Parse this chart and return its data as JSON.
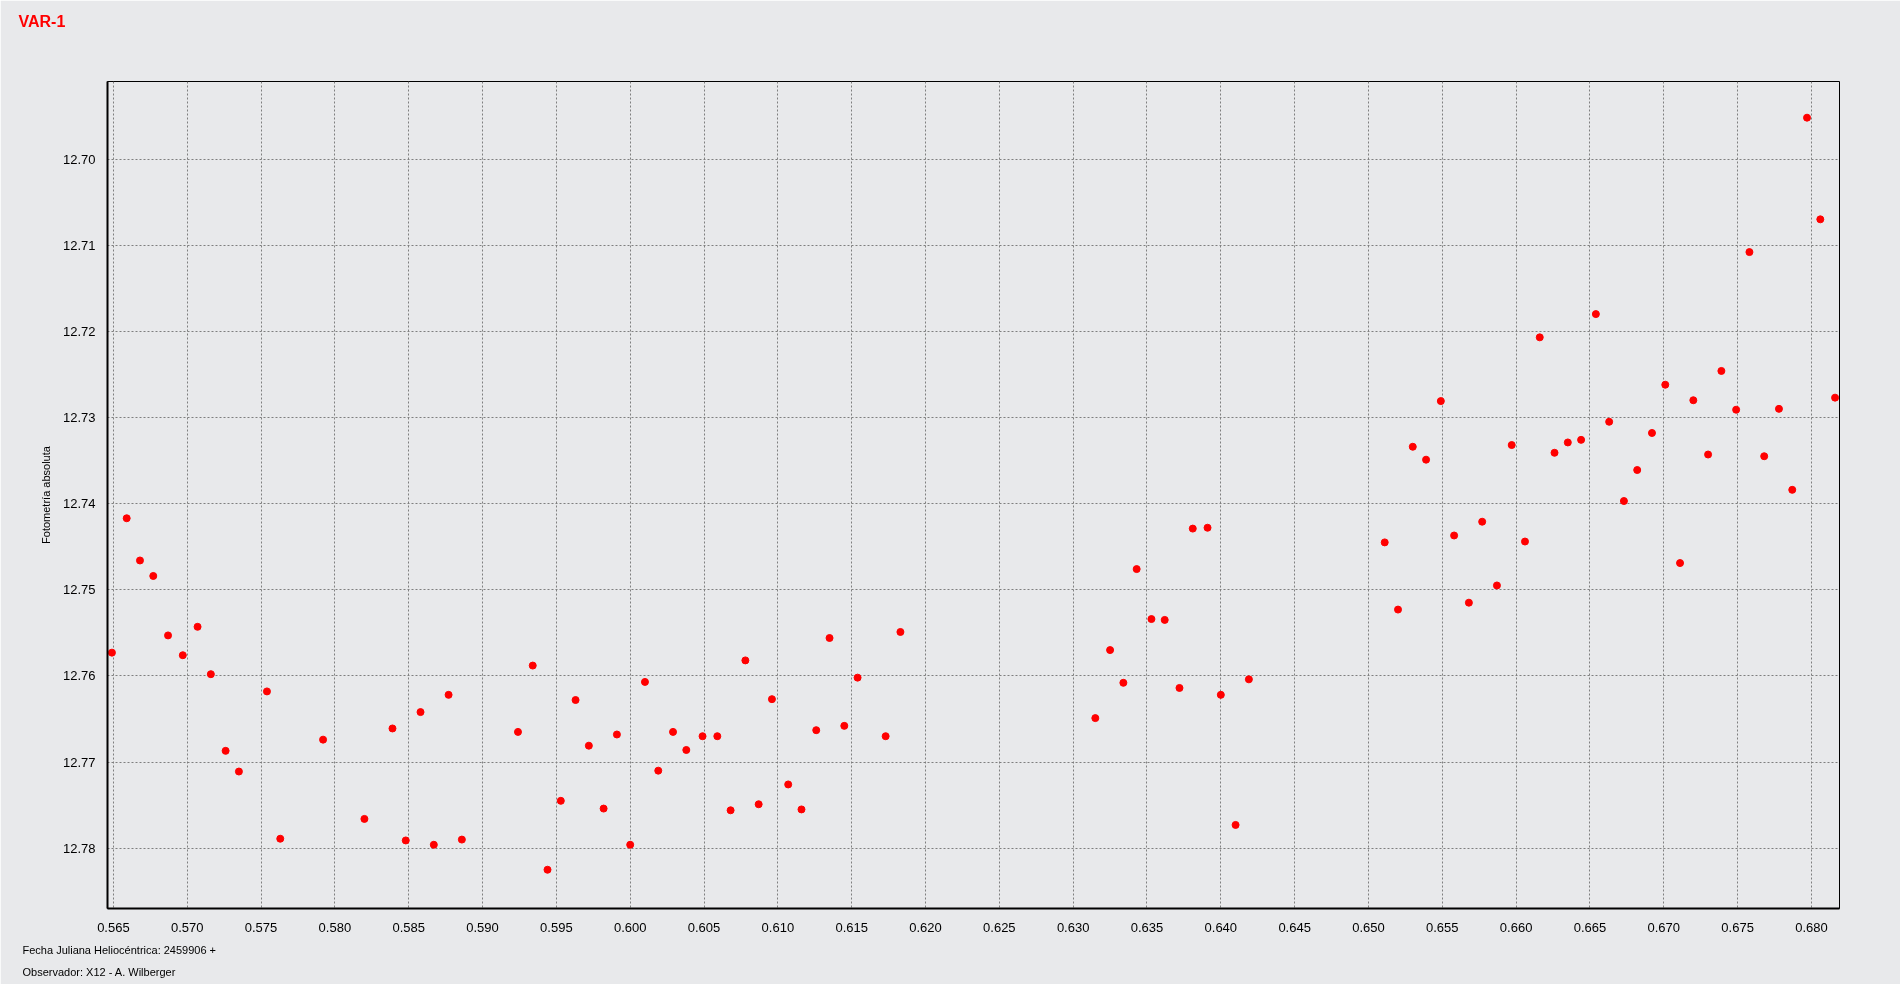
{
  "chart_data": {
    "type": "scatter",
    "title": "VAR-1",
    "xlabel": "Fecha Juliana Heliocéntrica: 2459906 +",
    "ylabel": "Fotometría absoluta",
    "annotations": [
      "Observador: X12 - A. Wilberger"
    ],
    "x": [
      0.5649,
      0.5659,
      0.5668,
      0.5677,
      0.5687,
      0.5697,
      0.5707,
      0.5716,
      0.5726,
      0.5735,
      0.5754,
      0.5763,
      0.5792,
      0.582,
      0.5839,
      0.5848,
      0.5858,
      0.5867,
      0.5877,
      0.5886,
      0.5924,
      0.5934,
      0.5944,
      0.5953,
      0.5963,
      0.5972,
      0.5982,
      0.5991,
      0.6,
      0.601,
      0.6019,
      0.6029,
      0.6038,
      0.6049,
      0.6059,
      0.6068,
      0.6078,
      0.6087,
      0.6096,
      0.6107,
      0.6116,
      0.6126,
      0.6135,
      0.6145,
      0.6154,
      0.6173,
      0.6183,
      0.6315,
      0.6325,
      0.6334,
      0.6343,
      0.6353,
      0.6362,
      0.6372,
      0.6381,
      0.6391,
      0.64,
      0.641,
      0.6419,
      0.6511,
      0.652,
      0.653,
      0.6539,
      0.6549,
      0.6558,
      0.6568,
      0.6577,
      0.6587,
      0.6597,
      0.6606,
      0.6616,
      0.6626,
      0.6635,
      0.6644,
      0.6654,
      0.6663,
      0.6673,
      0.6682,
      0.6692,
      0.6701,
      0.6711,
      0.672,
      0.673,
      0.6739,
      0.6749,
      0.6758,
      0.6768,
      0.6778,
      0.6787,
      0.6797,
      0.6806,
      0.6816
    ],
    "series": [
      {
        "color": "#ff0000",
        "values": [
          12.7573,
          12.7417,
          12.7466,
          12.7484,
          12.7553,
          12.7576,
          12.7543,
          12.7598,
          12.7687,
          12.7711,
          12.7618,
          12.7789,
          12.7674,
          12.7766,
          12.7661,
          12.7791,
          12.7642,
          12.7796,
          12.7622,
          12.779,
          12.7665,
          12.7588,
          12.7825,
          12.7745,
          12.7628,
          12.7681,
          12.7754,
          12.7668,
          12.7796,
          12.7607,
          12.771,
          12.7665,
          12.7686,
          12.767,
          12.767,
          12.7756,
          12.7582,
          12.7749,
          12.7627,
          12.7726,
          12.7755,
          12.7663,
          12.7556,
          12.7658,
          12.7602,
          12.767,
          12.7549,
          12.7649,
          12.757,
          12.7608,
          12.7476,
          12.7534,
          12.7535,
          12.7614,
          12.7429,
          12.7428,
          12.7622,
          12.7773,
          12.7604,
          12.7445,
          12.7523,
          12.7334,
          12.7349,
          12.7281,
          12.7437,
          12.7515,
          12.7421,
          12.7495,
          12.7332,
          12.7444,
          12.7207,
          12.7341,
          12.7329,
          12.7326,
          12.718,
          12.7305,
          12.7397,
          12.7361,
          12.7318,
          12.7262,
          12.7469,
          12.728,
          12.7343,
          12.7246,
          12.7291,
          12.7108,
          12.7345,
          12.729,
          12.7384,
          12.6952,
          12.707,
          12.7277
        ]
      }
    ],
    "marker": "circle",
    "grid": true,
    "xlim": [
      0.5646,
      0.6819
    ],
    "ylim": [
      12.787,
      12.691
    ],
    "xticks": [
      {
        "value": 0.565,
        "label": "0.565"
      },
      {
        "value": 0.57,
        "label": "0.570"
      },
      {
        "value": 0.575,
        "label": "0.575"
      },
      {
        "value": 0.58,
        "label": "0.580"
      },
      {
        "value": 0.585,
        "label": "0.585"
      },
      {
        "value": 0.59,
        "label": "0.590"
      },
      {
        "value": 0.595,
        "label": "0.595"
      },
      {
        "value": 0.6,
        "label": "0.600"
      },
      {
        "value": 0.605,
        "label": "0.605"
      },
      {
        "value": 0.61,
        "label": "0.610"
      },
      {
        "value": 0.615,
        "label": "0.615"
      },
      {
        "value": 0.62,
        "label": "0.620"
      },
      {
        "value": 0.625,
        "label": "0.625"
      },
      {
        "value": 0.63,
        "label": "0.630"
      },
      {
        "value": 0.635,
        "label": "0.635"
      },
      {
        "value": 0.64,
        "label": "0.640"
      },
      {
        "value": 0.645,
        "label": "0.645"
      },
      {
        "value": 0.65,
        "label": "0.650"
      },
      {
        "value": 0.655,
        "label": "0.655"
      },
      {
        "value": 0.66,
        "label": "0.660"
      },
      {
        "value": 0.665,
        "label": "0.665"
      },
      {
        "value": 0.67,
        "label": "0.670"
      },
      {
        "value": 0.675,
        "label": "0.675"
      },
      {
        "value": 0.68,
        "label": "0.680"
      }
    ],
    "yticks": [
      {
        "value": 12.7,
        "label": "12.70"
      },
      {
        "value": 12.71,
        "label": "12.71"
      },
      {
        "value": 12.72,
        "label": "12.72"
      },
      {
        "value": 12.73,
        "label": "12.73"
      },
      {
        "value": 12.74,
        "label": "12.74"
      },
      {
        "value": 12.75,
        "label": "12.75"
      },
      {
        "value": 12.76,
        "label": "12.76"
      },
      {
        "value": 12.77,
        "label": "12.77"
      },
      {
        "value": 12.78,
        "label": "12.78"
      }
    ]
  }
}
